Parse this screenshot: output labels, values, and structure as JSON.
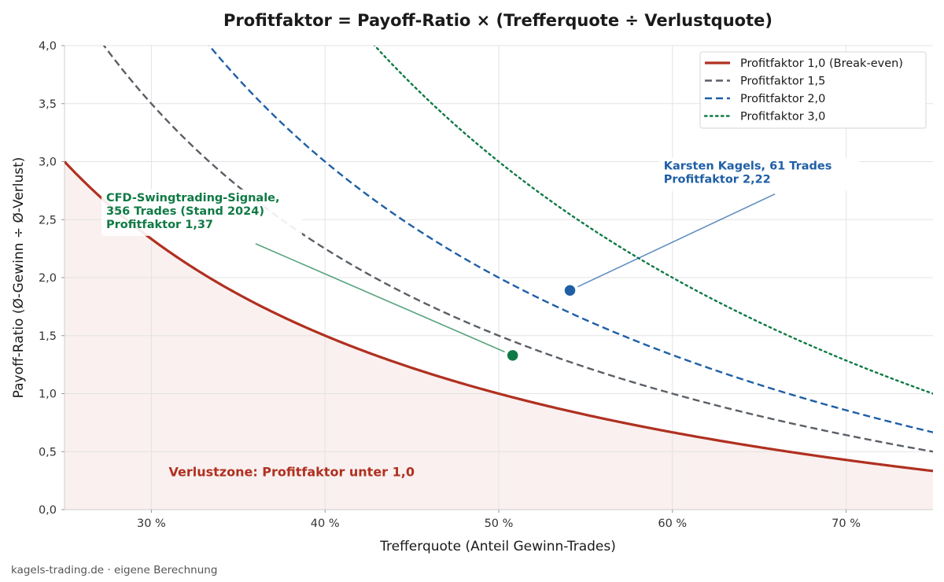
{
  "chart_data": {
    "type": "line",
    "title": "Profitfaktor = Payoff-Ratio × (Trefferquote ÷ Verlustquote)",
    "xlabel": "Trefferquote (Anteil Gewinn-Trades)",
    "ylabel": "Payoff-Ratio (Ø-Gewinn ÷ Ø-Verlust)",
    "xlim": [
      25,
      75
    ],
    "ylim": [
      0,
      4
    ],
    "xticks": [
      30,
      40,
      50,
      60,
      70
    ],
    "xtick_labels": [
      "30 %",
      "40 %",
      "50 %",
      "60 %",
      "70 %"
    ],
    "yticks": [
      0,
      0.5,
      1,
      1.5,
      2,
      2.5,
      3,
      3.5,
      4
    ],
    "ytick_labels": [
      "0,0",
      "0,5",
      "1,0",
      "1,5",
      "2,0",
      "2,5",
      "3,0",
      "3,5",
      "4,0"
    ],
    "grid": true,
    "legend_position": "top-right",
    "series": [
      {
        "name": "Profitfaktor 1,0 (Break-even)",
        "profit_factor": 1.0,
        "color": "#b03020",
        "style": "solid"
      },
      {
        "name": "Profitfaktor 1,5",
        "profit_factor": 1.5,
        "color": "#5a5f66",
        "style": "dashed"
      },
      {
        "name": "Profitfaktor 2,0",
        "profit_factor": 2.0,
        "color": "#1f5fa6",
        "style": "dashed"
      },
      {
        "name": "Profitfaktor 3,0",
        "profit_factor": 3.0,
        "color": "#0f7a45",
        "style": "dotted"
      }
    ],
    "points": [
      {
        "x": 50.8,
        "y": 1.33,
        "color": "#0f7a45",
        "label_lines": [
          "CFD-Swingtrading-Signale,",
          "356 Trades (Stand 2024)",
          "Profitfaktor 1,37"
        ],
        "label_x": 27.4,
        "label_y": 2.55
      },
      {
        "x": 54.1,
        "y": 1.89,
        "color": "#1f5fa6",
        "label_lines": [
          "Karsten Kagels, 61 Trades",
          "Profitfaktor 2,22"
        ],
        "label_x": 59.5,
        "label_y": 2.88
      }
    ],
    "shaded_zone": {
      "label": "Verlustzone: Profitfaktor unter 1,0",
      "color": "#b03020",
      "label_x": 31,
      "label_y": 0.33
    }
  },
  "footer": "kagels-trading.de  ·  eigene Berechnung"
}
